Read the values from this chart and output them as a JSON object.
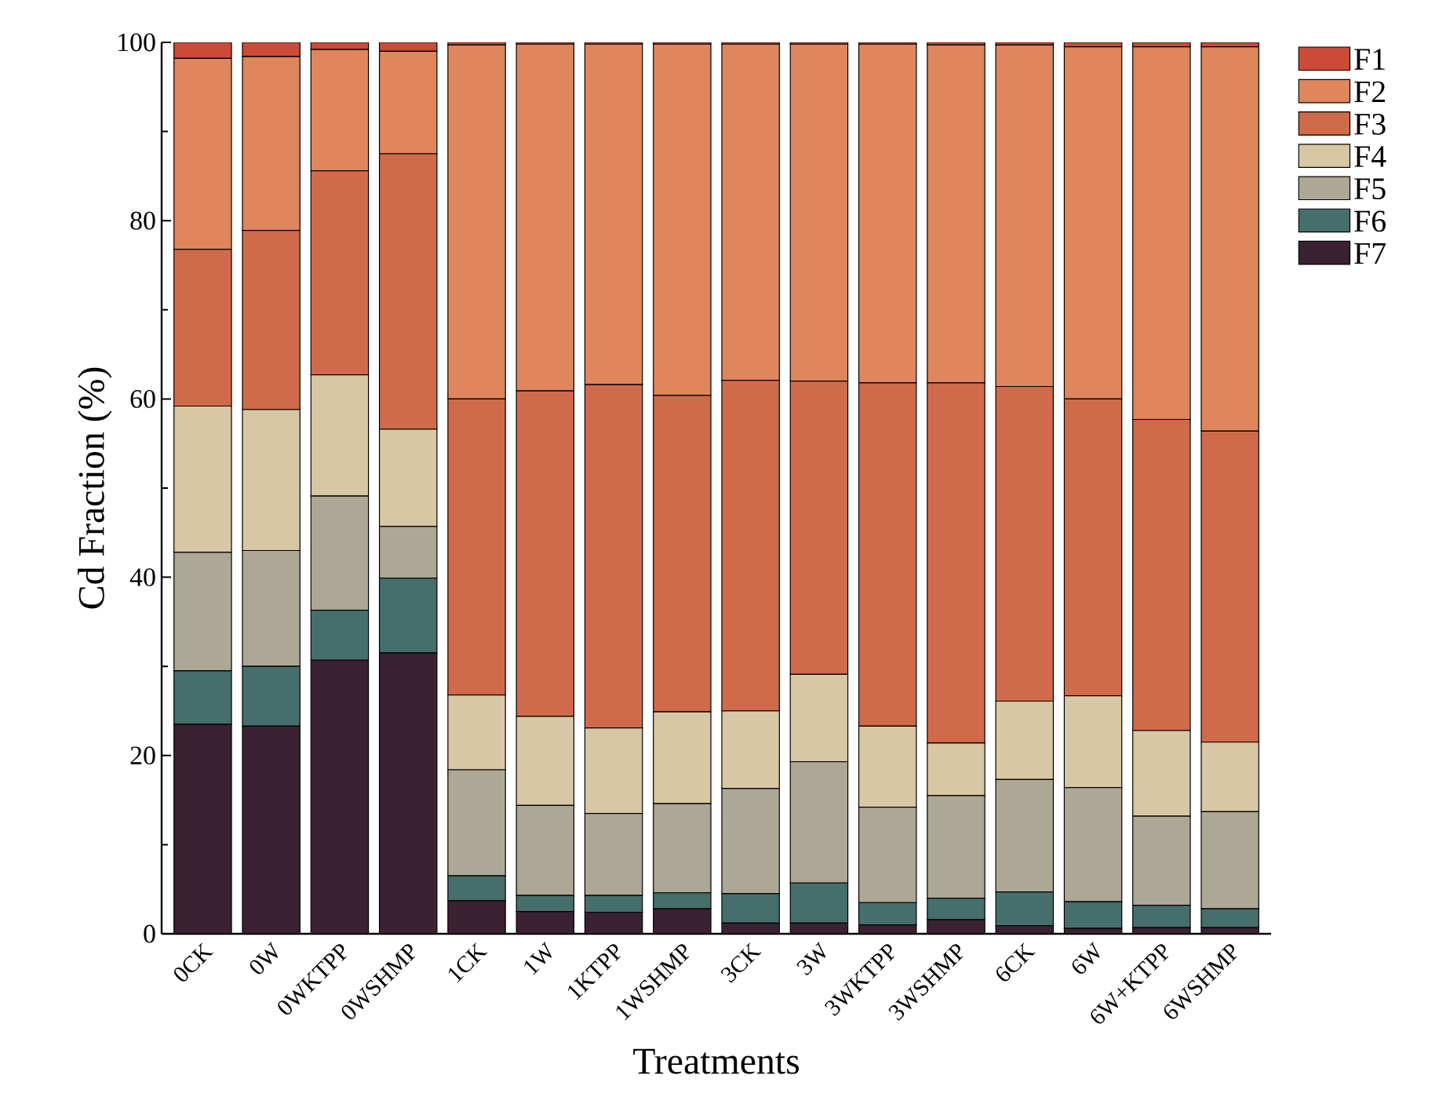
{
  "chart_data": {
    "type": "bar",
    "stacked": true,
    "xlabel": "Treatments",
    "ylabel": "Cd Fraction (%)",
    "categories": [
      "0CK",
      "0W",
      "0WKTPP",
      "0WSHMP",
      "1CK",
      "1W",
      "1KTPP",
      "1WSHMP",
      "3CK",
      "3W",
      "3WKTPP",
      "3WSHMP",
      "6CK",
      "6W",
      "6W+KTPP",
      "6WSHMP"
    ],
    "series": [
      {
        "name": "F7",
        "color": "#3a2232",
        "values": [
          23.5,
          23.3,
          30.7,
          31.5,
          3.7,
          2.5,
          2.4,
          2.8,
          1.2,
          1.2,
          1.0,
          1.6,
          0.9,
          0.6,
          0.7,
          0.7
        ]
      },
      {
        "name": "F6",
        "color": "#456e6c",
        "values": [
          6.0,
          6.7,
          5.6,
          8.4,
          2.8,
          1.8,
          1.9,
          1.8,
          3.3,
          4.5,
          2.5,
          2.4,
          3.8,
          3.0,
          2.5,
          2.1
        ]
      },
      {
        "name": "F5",
        "color": "#ada795",
        "values": [
          13.3,
          13.0,
          12.8,
          5.8,
          11.9,
          10.1,
          9.2,
          10.0,
          11.8,
          13.6,
          10.7,
          11.5,
          12.6,
          12.8,
          10.0,
          10.9
        ]
      },
      {
        "name": "F4",
        "color": "#d8c7a4",
        "values": [
          16.4,
          15.8,
          13.6,
          10.9,
          8.4,
          10.0,
          9.6,
          10.3,
          8.7,
          9.8,
          9.1,
          5.9,
          8.8,
          10.3,
          9.6,
          7.8
        ]
      },
      {
        "name": "F3",
        "color": "#cf6b4a",
        "values": [
          17.6,
          20.1,
          22.9,
          30.9,
          33.2,
          36.5,
          38.5,
          35.5,
          37.1,
          32.9,
          38.5,
          40.4,
          35.3,
          33.3,
          34.9,
          34.9
        ]
      },
      {
        "name": "F2",
        "color": "#df865c",
        "values": [
          21.4,
          19.5,
          13.6,
          11.5,
          39.7,
          38.9,
          38.2,
          39.4,
          37.7,
          37.8,
          38.0,
          37.9,
          38.3,
          39.5,
          41.8,
          43.1
        ]
      },
      {
        "name": "F1",
        "color": "#cc4b38",
        "values": [
          1.8,
          1.6,
          0.8,
          1.0,
          0.3,
          0.2,
          0.2,
          0.2,
          0.2,
          0.2,
          0.2,
          0.3,
          0.3,
          0.5,
          0.5,
          0.5
        ]
      }
    ],
    "ylim": [
      0,
      100
    ],
    "yticks": [
      0,
      20,
      40,
      60,
      80,
      100
    ],
    "legend": "top right"
  }
}
